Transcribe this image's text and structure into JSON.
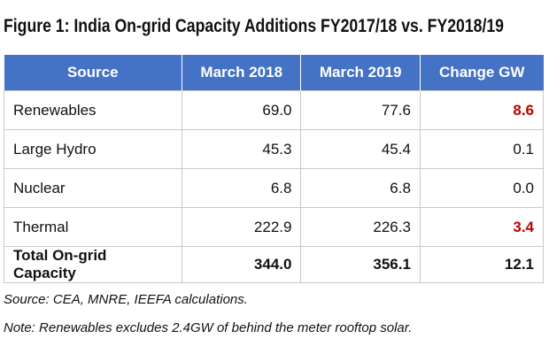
{
  "title": "Figure 1: India On-grid Capacity Additions FY2017/18 vs. FY2018/19",
  "table": {
    "header": [
      "Source",
      "March 2018",
      "March 2019",
      "Change GW"
    ],
    "rows": [
      [
        "Renewables",
        "69.0",
        "77.6",
        "8.6"
      ],
      [
        "Large Hydro",
        "45.3",
        "45.4",
        "0.1"
      ],
      [
        "Nuclear",
        "6.8",
        "6.8",
        "0.0"
      ],
      [
        "Thermal",
        "222.9",
        "226.3",
        "3.4"
      ],
      [
        "Total On-grid Capacity",
        "344.0",
        "356.1",
        "12.1"
      ]
    ]
  },
  "notes": [
    "Source: CEA, MNRE, IEEFA calculations.",
    "Note: Renewables excludes 2.4GW of behind the meter rooftop solar."
  ]
}
